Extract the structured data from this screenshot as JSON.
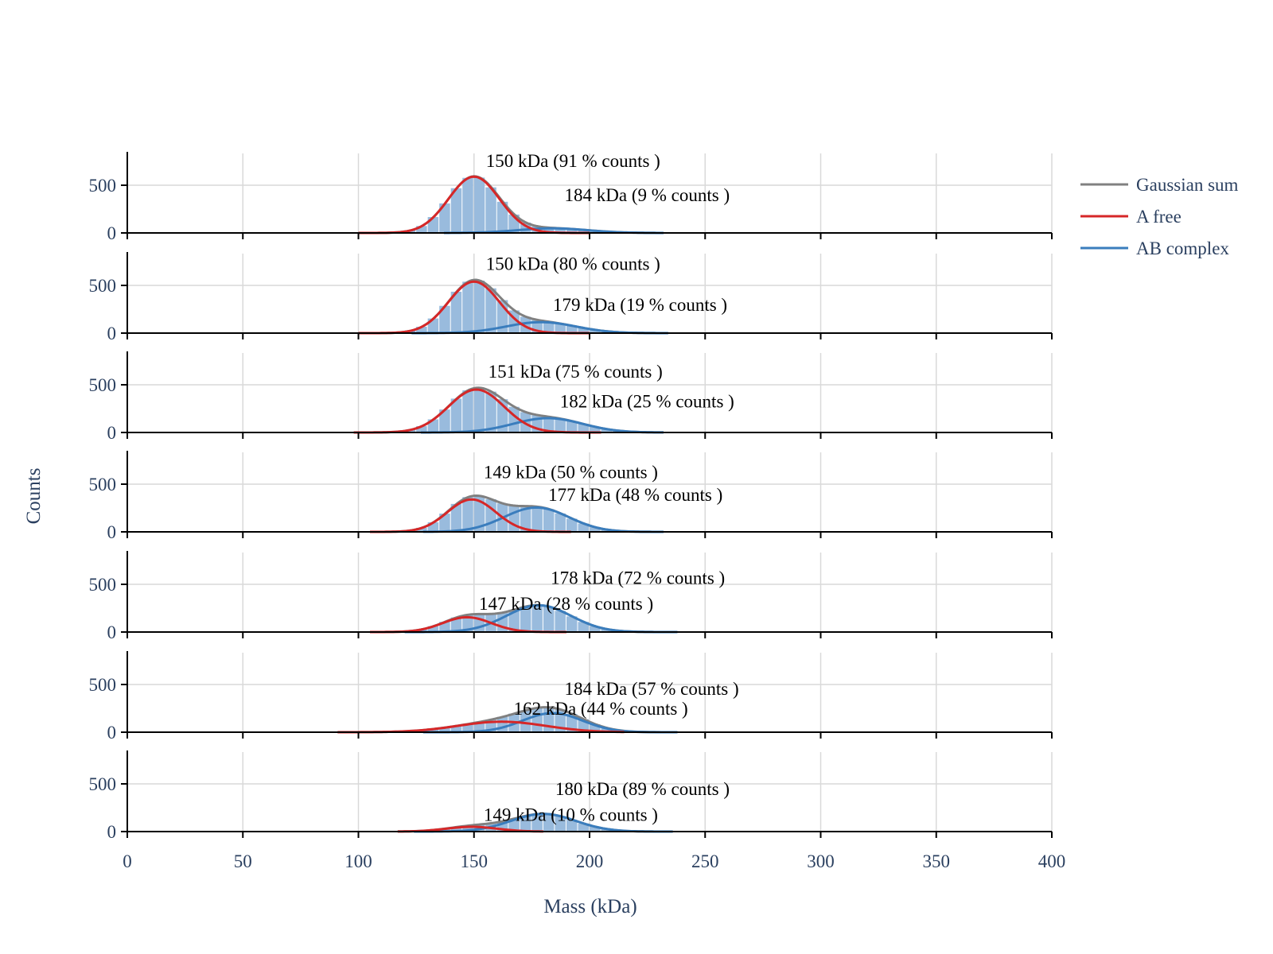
{
  "chart_data": {
    "type": "bar",
    "title": "",
    "xlabel": "Mass (kDa)",
    "ylabel": "Counts",
    "xlim": [
      0,
      400
    ],
    "ylim": [
      0,
      750
    ],
    "x_ticks": [
      "0",
      "50",
      "100",
      "150",
      "200",
      "250",
      "300",
      "350",
      "400"
    ],
    "y_ticks": [
      "0",
      "500"
    ],
    "grid": true,
    "legend_position": "top-right",
    "bin_width": 5,
    "colors": {
      "histogram": "#99bbdd",
      "gaussian_sum": "#808080",
      "a_free": "#d62728",
      "ab_complex": "#3a7dbd",
      "grid": "#d9d9d9",
      "axis": "#000000"
    },
    "legend": [
      {
        "name": "Gaussian sum",
        "key": "gaussian_sum"
      },
      {
        "name": "A free",
        "key": "a_free"
      },
      {
        "name": "AB complex",
        "key": "ab_complex"
      }
    ],
    "panels": [
      {
        "a_free": {
          "mean": 150,
          "amp": 590,
          "sigma": 11,
          "range": [
            100,
            200
          ]
        },
        "ab_complex": {
          "mean": 184,
          "amp": 48,
          "sigma": 15,
          "range": [
            137,
            232
          ]
        },
        "annotations": [
          {
            "text": "150 kDa (91 % counts )",
            "x": 150,
            "y": 760
          },
          {
            "text": "184 kDa (9 % counts )",
            "x": 184,
            "y": 400
          }
        ]
      },
      {
        "a_free": {
          "mean": 150,
          "amp": 540,
          "sigma": 11,
          "range": [
            100,
            200
          ]
        },
        "ab_complex": {
          "mean": 179,
          "amp": 115,
          "sigma": 15,
          "range": [
            123,
            234
          ]
        },
        "annotations": [
          {
            "text": "150 kDa (80 % counts )",
            "x": 150,
            "y": 730
          },
          {
            "text": "179 kDa (19 % counts )",
            "x": 179,
            "y": 300
          }
        ]
      },
      {
        "a_free": {
          "mean": 151,
          "amp": 450,
          "sigma": 12,
          "range": [
            98,
            205
          ]
        },
        "ab_complex": {
          "mean": 182,
          "amp": 150,
          "sigma": 15,
          "range": [
            127,
            232
          ]
        },
        "annotations": [
          {
            "text": "151 kDa (75 % counts )",
            "x": 151,
            "y": 640
          },
          {
            "text": "182 kDa (25 % counts )",
            "x": 182,
            "y": 330
          }
        ]
      },
      {
        "a_free": {
          "mean": 149,
          "amp": 340,
          "sigma": 10.5,
          "range": [
            105,
            192
          ]
        },
        "ab_complex": {
          "mean": 177,
          "amp": 255,
          "sigma": 14,
          "range": [
            128,
            232
          ]
        },
        "annotations": [
          {
            "text": "149 kDa (50 % counts )",
            "x": 149,
            "y": 630
          },
          {
            "text": "177 kDa (48 % counts )",
            "x": 177,
            "y": 390
          }
        ]
      },
      {
        "a_free": {
          "mean": 147,
          "amp": 155,
          "sigma": 10.5,
          "range": [
            105,
            190
          ]
        },
        "ab_complex": {
          "mean": 178,
          "amp": 280,
          "sigma": 14,
          "range": [
            120,
            238
          ]
        },
        "annotations": [
          {
            "text": "178 kDa (72 % counts )",
            "x": 178,
            "y": 570
          },
          {
            "text": "147 kDa (28 % counts )",
            "x": 147,
            "y": 300
          }
        ]
      },
      {
        "a_free": {
          "mean": 162,
          "amp": 110,
          "sigma": 19,
          "range": [
            91,
            215
          ]
        },
        "ab_complex": {
          "mean": 184,
          "amp": 200,
          "sigma": 13,
          "range": [
            128,
            238
          ]
        },
        "annotations": [
          {
            "text": "184 kDa (57 % counts )",
            "x": 184,
            "y": 460
          },
          {
            "text": "162 kDa (44 % counts )",
            "x": 162,
            "y": 250
          }
        ]
      },
      {
        "a_free": {
          "mean": 149,
          "amp": 50,
          "sigma": 11,
          "range": [
            117,
            180
          ]
        },
        "ab_complex": {
          "mean": 180,
          "amp": 185,
          "sigma": 14,
          "range": [
            124,
            236
          ]
        },
        "annotations": [
          {
            "text": "180 kDa (89 % counts )",
            "x": 180,
            "y": 450
          },
          {
            "text": "149 kDa (10 % counts )",
            "x": 149,
            "y": 180
          }
        ]
      }
    ]
  }
}
